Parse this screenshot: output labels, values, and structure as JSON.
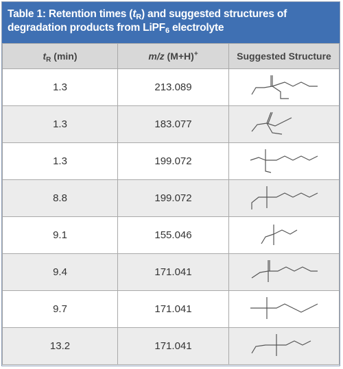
{
  "title": [
    "Table 1: Retention times (",
    "t",
    "R",
    ") and suggested structures of degradation products from LiPF",
    "6",
    " electrolyte"
  ],
  "table": {
    "header": [
      [
        "t",
        "R",
        " (min)"
      ],
      [
        "m/z",
        " (M+H)",
        "+"
      ],
      [
        "Suggested Structure"
      ]
    ],
    "rows": [
      [
        "1.3",
        "213.089"
      ],
      [
        "1.3",
        "183.077"
      ],
      [
        "1.3",
        "199.072"
      ],
      [
        "8.8",
        "199.072"
      ],
      [
        "9.1",
        "155.046"
      ],
      [
        "9.4",
        "171.041"
      ],
      [
        "9.7",
        "171.041"
      ],
      [
        "13.2",
        "171.041"
      ]
    ]
  }
}
